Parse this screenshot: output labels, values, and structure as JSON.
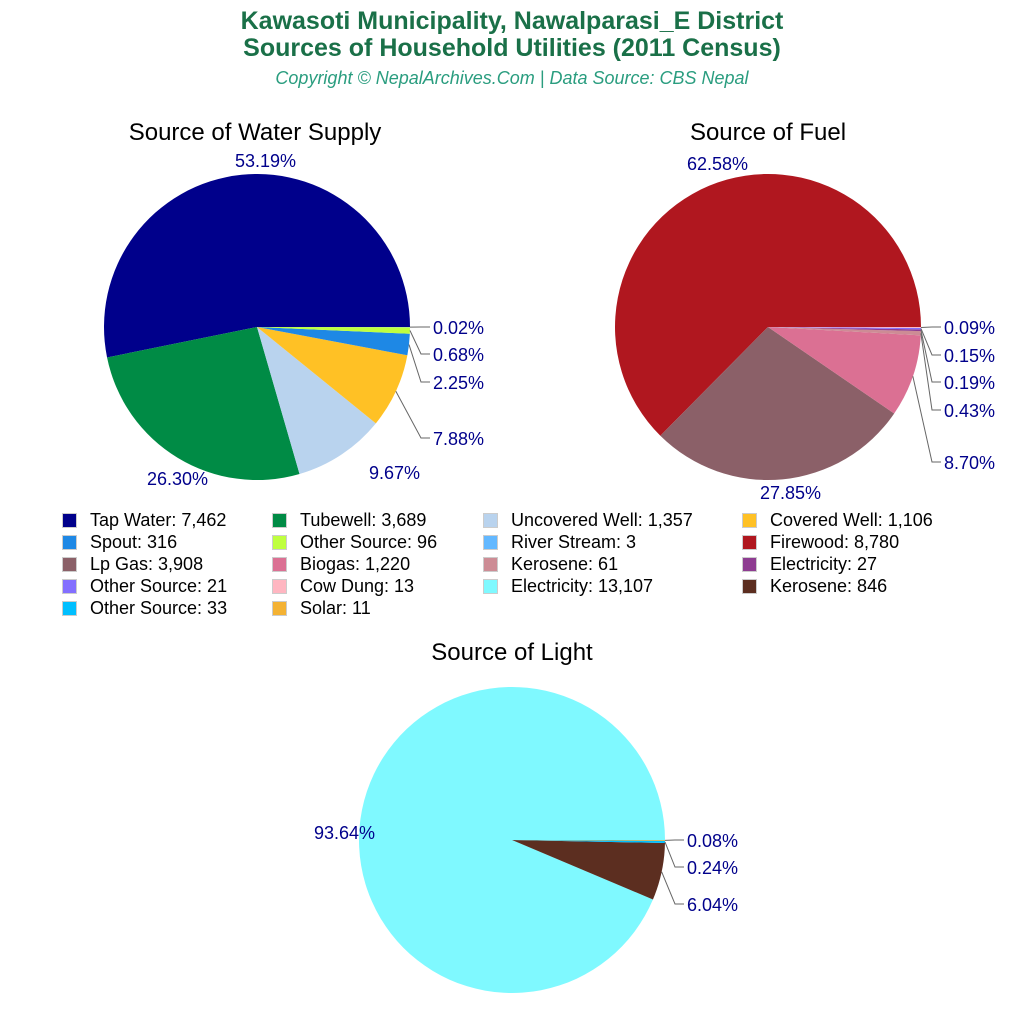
{
  "title": "Kawasoti Municipality, Nawalparasi_E District",
  "subtitle": "Sources of Household Utilities (2011 Census)",
  "copyright": "Copyright © NepalArchives.Com | Data Source: CBS Nepal",
  "label_color": "#00008B",
  "chart_data": [
    {
      "type": "pie",
      "title": "Source of Water Supply",
      "slices": [
        {
          "name": "Tap Water",
          "value": 7462,
          "display": "7,462",
          "pct": "53.19%",
          "color": "#00008B"
        },
        {
          "name": "Tubewell",
          "value": 3689,
          "display": "3,689",
          "pct": "26.30%",
          "color": "#008B45"
        },
        {
          "name": "Uncovered Well",
          "value": 1357,
          "display": "1,357",
          "pct": "9.67%",
          "color": "#B9D3EE"
        },
        {
          "name": "Covered Well",
          "value": 1106,
          "display": "1,106",
          "pct": "7.88%",
          "color": "#FFC125"
        },
        {
          "name": "Spout",
          "value": 316,
          "display": "316",
          "pct": "2.25%",
          "color": "#1E88E5"
        },
        {
          "name": "Other Source",
          "value": 96,
          "display": "96",
          "pct": "0.68%",
          "color": "#BFFF3F"
        },
        {
          "name": "River Stream",
          "value": 3,
          "display": "3",
          "pct": "0.02%",
          "color": "#63B8FF"
        }
      ]
    },
    {
      "type": "pie",
      "title": "Source of Fuel",
      "slices": [
        {
          "name": "Firewood",
          "value": 8780,
          "display": "8,780",
          "pct": "62.58%",
          "color": "#B0171F"
        },
        {
          "name": "Lp Gas",
          "value": 3908,
          "display": "3,908",
          "pct": "27.85%",
          "color": "#8B6068"
        },
        {
          "name": "Biogas",
          "value": 1220,
          "display": "1,220",
          "pct": "8.70%",
          "color": "#DB7093"
        },
        {
          "name": "Kerosene",
          "value": 61,
          "display": "61",
          "pct": "0.43%",
          "color": "#CD8C95"
        },
        {
          "name": "Electricity",
          "value": 27,
          "display": "27",
          "pct": "0.19%",
          "color": "#8E3C91"
        },
        {
          "name": "Other Source",
          "value": 21,
          "display": "21",
          "pct": "0.15%",
          "color": "#836FFF"
        },
        {
          "name": "Cow Dung",
          "value": 13,
          "display": "13",
          "pct": "0.09%",
          "color": "#FFB6C1"
        }
      ]
    },
    {
      "type": "pie",
      "title": "Source of Light",
      "slices": [
        {
          "name": "Electricity",
          "value": 13107,
          "display": "13,107",
          "pct": "93.64%",
          "color": "#7FF9FF"
        },
        {
          "name": "Kerosene",
          "value": 846,
          "display": "846",
          "pct": "6.04%",
          "color": "#5C2E20"
        },
        {
          "name": "Other Source",
          "value": 33,
          "display": "33",
          "pct": "0.24%",
          "color": "#00BFFF"
        },
        {
          "name": "Solar",
          "value": 11,
          "display": "11",
          "pct": "0.08%",
          "color": "#F4B233"
        }
      ]
    }
  ],
  "legend_order": [
    [
      0,
      0
    ],
    [
      0,
      1
    ],
    [
      0,
      2
    ],
    [
      0,
      3
    ],
    [
      0,
      4
    ],
    [
      0,
      5
    ],
    [
      0,
      6
    ],
    [
      1,
      0
    ],
    [
      1,
      1
    ],
    [
      1,
      2
    ],
    [
      1,
      3
    ],
    [
      1,
      4
    ],
    [
      1,
      5
    ],
    [
      1,
      6
    ],
    [
      2,
      0
    ],
    [
      2,
      1
    ],
    [
      2,
      2
    ],
    [
      2,
      3
    ]
  ]
}
